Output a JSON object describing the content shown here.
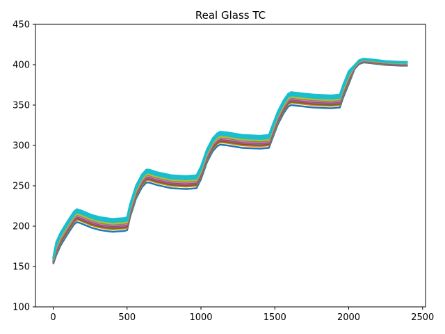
{
  "chart_data": {
    "type": "line",
    "title": "Real Glass TC",
    "xlabel": "",
    "ylabel": "",
    "xlim": [
      -120,
      2520
    ],
    "ylim": [
      100,
      450
    ],
    "xticks": [
      0,
      500,
      1000,
      1500,
      2000,
      2500
    ],
    "yticks": [
      100,
      150,
      200,
      250,
      300,
      350,
      400,
      450
    ],
    "grid": false,
    "legend": "none",
    "base_curve": {
      "x": [
        0,
        20,
        50,
        100,
        140,
        160,
        180,
        220,
        260,
        320,
        400,
        480,
        500,
        520,
        560,
        600,
        630,
        650,
        700,
        800,
        900,
        970,
        1000,
        1040,
        1080,
        1110,
        1130,
        1180,
        1280,
        1400,
        1460,
        1480,
        1520,
        1560,
        1590,
        1610,
        1660,
        1760,
        1880,
        1940,
        1960,
        2000,
        2040,
        2070,
        2100,
        2150,
        2250,
        2350,
        2400
      ],
      "y": [
        155,
        168,
        180,
        195,
        206,
        209,
        208,
        205,
        202,
        199,
        197,
        198,
        199,
        215,
        238,
        252,
        258,
        258,
        255,
        251,
        250,
        251,
        262,
        283,
        297,
        303,
        305,
        304,
        301,
        300,
        301,
        311,
        330,
        344,
        352,
        354,
        353,
        351,
        350,
        351,
        362,
        380,
        396,
        402,
        404,
        403,
        401,
        400,
        400
      ]
    },
    "series": [
      {
        "color": "#1f77b4",
        "offset": -4
      },
      {
        "color": "#ff7f0e",
        "offset": -1
      },
      {
        "color": "#2ca02c",
        "offset": 0
      },
      {
        "color": "#d62728",
        "offset": 1
      },
      {
        "color": "#9467bd",
        "offset": 2
      },
      {
        "color": "#8c564b",
        "offset": 3
      },
      {
        "color": "#e377c2",
        "offset": 4
      },
      {
        "color": "#7f7f7f",
        "offset": 5
      },
      {
        "color": "#bcbd22",
        "offset": 6
      },
      {
        "color": "#17becf",
        "offset": 8
      },
      {
        "color": "#17becf",
        "offset": 10
      },
      {
        "color": "#17becf",
        "offset": 12
      }
    ]
  }
}
